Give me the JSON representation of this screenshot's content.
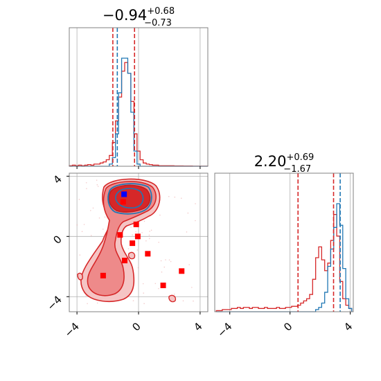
{
  "chart_data": {
    "type": "corner-plot",
    "colors": {
      "red": "#d62728",
      "blue": "#1f77b4",
      "marker_red": "#ff0000",
      "marker_blue": "#0000ff",
      "red_fill_light": "#f5c4c4",
      "red_fill_mid": "#ee8a8a"
    },
    "panels": {
      "hist_x": {
        "title_main": "−0.94",
        "title_sup": "+0.68",
        "title_sub": "−0.73",
        "xlim": [
          -4.5,
          4.5
        ],
        "vlines_red": [
          -1.67,
          -0.26
        ],
        "vline_blue": -1.38,
        "x": [
          -4.4,
          -4.2,
          -4.0,
          -3.8,
          -3.6,
          -3.4,
          -3.2,
          -3.0,
          -2.8,
          -2.6,
          -2.4,
          -2.2,
          -2.0,
          -1.8,
          -1.6,
          -1.4,
          -1.2,
          -1.0,
          -0.8,
          -0.6,
          -0.4,
          -0.2,
          0.0,
          0.2,
          0.4,
          0.6,
          0.8,
          1.0,
          1.2,
          1.4,
          1.6,
          1.8,
          2.0,
          2.2,
          2.4,
          2.6,
          2.8,
          3.0,
          3.2,
          3.4,
          3.6,
          3.8,
          4.0,
          4.2,
          4.4
        ],
        "red_counts": [
          0.5,
          1,
          0.5,
          1,
          0.5,
          1,
          1.5,
          1,
          2,
          2,
          3,
          4,
          6,
          10,
          22,
          42,
          64,
          88,
          96,
          86,
          60,
          30,
          14,
          6,
          3,
          2,
          1.5,
          1,
          1,
          0.5,
          0.5,
          0.5,
          0.5,
          0.5,
          0.3,
          0.3,
          0.3,
          0.2,
          0.2,
          0.2,
          0.1,
          0.1,
          0.1,
          0.1,
          0.1
        ],
        "blue_counts": [
          0,
          0,
          0,
          0,
          0,
          0,
          0,
          0,
          0,
          0,
          0,
          0,
          0,
          2,
          8,
          30,
          68,
          100,
          100,
          86,
          50,
          14,
          2,
          0,
          0,
          0,
          0,
          0,
          0,
          0,
          0,
          0,
          0,
          0,
          0,
          0,
          0,
          0,
          0,
          0,
          0,
          0,
          0,
          0,
          0
        ],
        "xticks": [
          -4,
          0,
          4
        ],
        "xtick_labels": [
          "−4",
          "0",
          "4"
        ]
      },
      "hist_y": {
        "title_main": "2.20",
        "title_sup": "+0.69",
        "title_sub": "−1.67",
        "xlim": [
          -5,
          4.2
        ],
        "vlines_red": [
          0.53,
          2.89
        ],
        "vline_blue": 3.33,
        "x": [
          -4.8,
          -4.6,
          -4.4,
          -4.2,
          -4.0,
          -3.8,
          -3.6,
          -3.4,
          -3.2,
          -3.0,
          -2.8,
          -2.6,
          -2.4,
          -2.2,
          -2.0,
          -1.8,
          -1.6,
          -1.4,
          -1.2,
          -1.0,
          -0.8,
          -0.6,
          -0.4,
          -0.2,
          0.0,
          0.2,
          0.4,
          0.6,
          0.8,
          1.0,
          1.2,
          1.4,
          1.6,
          1.8,
          2.0,
          2.2,
          2.4,
          2.6,
          2.8,
          3.0,
          3.2,
          3.4,
          3.6,
          3.8,
          4.0
        ],
        "red_counts": [
          1,
          1,
          2,
          2,
          2,
          3,
          3,
          4,
          3,
          4,
          4,
          3,
          4,
          4,
          3,
          3,
          4,
          3,
          3,
          3,
          4,
          3,
          3,
          4,
          4,
          5,
          5,
          6,
          8,
          10,
          12,
          16,
          30,
          50,
          60,
          48,
          38,
          45,
          66,
          90,
          70,
          28,
          12,
          6,
          3
        ],
        "blue_counts": [
          0,
          0,
          0,
          0,
          0,
          0,
          0,
          0,
          0,
          0,
          0,
          0,
          0,
          0,
          0,
          0,
          0,
          0,
          0,
          0,
          0,
          0,
          0,
          0,
          0,
          0,
          0,
          0,
          0,
          0,
          0,
          0,
          0,
          2,
          4,
          8,
          18,
          42,
          58,
          78,
          100,
          80,
          40,
          12,
          3
        ],
        "xticks": [
          -4,
          0,
          4
        ],
        "xtick_labels": [
          "−4",
          "0",
          "4"
        ]
      },
      "joint": {
        "xlim": [
          -4.5,
          4.5
        ],
        "ylim": [
          -5,
          4.2
        ],
        "xticks": [
          -4,
          0,
          4
        ],
        "xtick_labels": [
          "−4",
          "0",
          "4"
        ],
        "yticks": [
          -4,
          0,
          4
        ],
        "ytick_labels": [
          "−4",
          "0",
          "4"
        ],
        "red_markers": [
          [
            -1.0,
            2.3
          ],
          [
            -0.15,
            0.8
          ],
          [
            -1.2,
            0.1
          ],
          [
            -0.05,
            0.0
          ],
          [
            -0.4,
            -0.45
          ],
          [
            -0.9,
            -1.6
          ],
          [
            0.6,
            -1.15
          ],
          [
            -2.3,
            -2.6
          ],
          [
            1.6,
            -3.25
          ],
          [
            2.8,
            -2.3
          ]
        ],
        "blue_marker": [
          -0.94,
          2.8
        ]
      }
    }
  }
}
